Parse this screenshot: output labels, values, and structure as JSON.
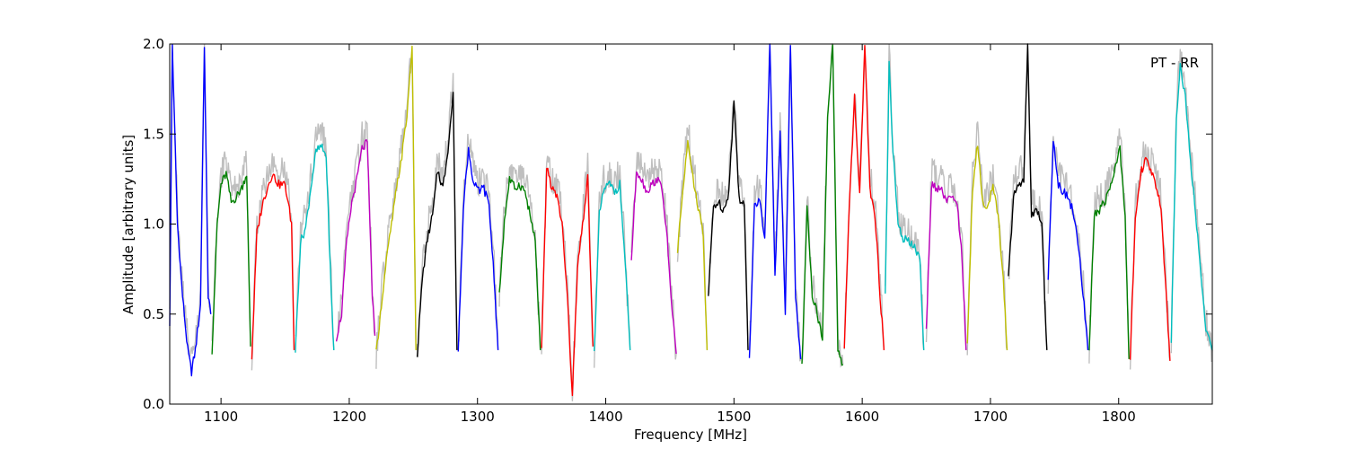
{
  "chart_data": {
    "type": "line",
    "xlabel": "Frequency [MHz]",
    "ylabel": "Amplitude [arbitrary units]",
    "annotation": "PT - RR",
    "xlim": [
      1060,
      1873
    ],
    "ylim": [
      0.0,
      2.0
    ],
    "grid": false,
    "xticks": [
      1100,
      1200,
      1300,
      1400,
      1500,
      1600,
      1700,
      1800
    ],
    "xtick_labels": [
      "1100",
      "1200",
      "1300",
      "1400",
      "1500",
      "1600",
      "1700",
      "1800"
    ],
    "yticks": [
      0.0,
      0.5,
      1.0,
      1.5,
      2.0
    ],
    "ytick_labels": [
      "0.0",
      "0.5",
      "1.0",
      "1.5",
      "2.0"
    ],
    "background_series_color": "#bfbfbf",
    "subband_colors": [
      "#0000ff",
      "#008000",
      "#ff0000",
      "#00bfbf",
      "#bf00bf",
      "#bfbf00",
      "#000000"
    ],
    "subbands": [
      {
        "color": "#0000ff",
        "x": [
          1060,
          1062,
          1066,
          1070,
          1074,
          1077,
          1080,
          1084,
          1087,
          1090,
          1092
        ],
        "y": [
          0.45,
          2.0,
          1.0,
          0.6,
          0.3,
          0.18,
          0.3,
          0.55,
          2.0,
          0.6,
          0.5
        ]
      },
      {
        "color": "#008000",
        "x": [
          1093,
          1097,
          1100,
          1104,
          1108,
          1112,
          1116,
          1120,
          1123
        ],
        "y": [
          0.3,
          1.0,
          1.22,
          1.28,
          1.12,
          1.15,
          1.2,
          1.28,
          0.32
        ]
      },
      {
        "color": "#ff0000",
        "x": [
          1124,
          1128,
          1132,
          1136,
          1140,
          1145,
          1150,
          1155,
          1157
        ],
        "y": [
          0.26,
          0.95,
          1.1,
          1.2,
          1.28,
          1.22,
          1.22,
          1.0,
          0.3
        ]
      },
      {
        "color": "#00bfbf",
        "x": [
          1158,
          1162,
          1166,
          1170,
          1174,
          1178,
          1182,
          1186,
          1188
        ],
        "y": [
          0.3,
          0.9,
          0.98,
          1.2,
          1.4,
          1.43,
          1.38,
          0.6,
          0.3
        ]
      },
      {
        "color": "#bf00bf",
        "x": [
          1190,
          1194,
          1198,
          1202,
          1206,
          1210,
          1214,
          1218,
          1220
        ],
        "y": [
          0.37,
          0.5,
          0.9,
          1.12,
          1.25,
          1.42,
          1.45,
          0.6,
          0.38
        ]
      },
      {
        "color": "#bfbf00",
        "x": [
          1221,
          1225,
          1229,
          1233,
          1237,
          1241,
          1245,
          1249,
          1252
        ],
        "y": [
          0.28,
          0.55,
          0.8,
          1.0,
          1.2,
          1.38,
          1.6,
          2.0,
          0.3
        ]
      },
      {
        "color": "#000000",
        "x": [
          1253,
          1257,
          1261,
          1265,
          1269,
          1273,
          1277,
          1281,
          1284
        ],
        "y": [
          0.28,
          0.7,
          0.92,
          1.05,
          1.3,
          1.2,
          1.42,
          1.72,
          0.3
        ]
      },
      {
        "color": "#0000ff",
        "x": [
          1285,
          1289,
          1293,
          1297,
          1301,
          1305,
          1309,
          1313,
          1316
        ],
        "y": [
          0.3,
          1.1,
          1.42,
          1.22,
          1.18,
          1.2,
          1.1,
          0.7,
          0.3
        ]
      },
      {
        "color": "#008000",
        "x": [
          1317,
          1321,
          1325,
          1329,
          1333,
          1337,
          1341,
          1345,
          1349
        ],
        "y": [
          0.6,
          1.02,
          1.25,
          1.2,
          1.22,
          1.18,
          1.05,
          0.9,
          0.3
        ]
      },
      {
        "color": "#ff0000",
        "x": [
          1350,
          1354,
          1358,
          1362,
          1366,
          1370,
          1374,
          1378,
          1382,
          1386,
          1390
        ],
        "y": [
          0.3,
          1.32,
          1.2,
          1.15,
          1.0,
          0.6,
          0.04,
          0.75,
          1.0,
          1.25,
          0.32
        ]
      },
      {
        "color": "#00bfbf",
        "x": [
          1391,
          1395,
          1399,
          1403,
          1407,
          1411,
          1415,
          1419
        ],
        "y": [
          0.28,
          1.05,
          1.2,
          1.22,
          1.18,
          1.22,
          0.8,
          0.3
        ]
      },
      {
        "color": "#bf00bf",
        "x": [
          1420,
          1424,
          1428,
          1432,
          1436,
          1440,
          1444,
          1448,
          1452,
          1455
        ],
        "y": [
          0.8,
          1.3,
          1.25,
          1.18,
          1.22,
          1.25,
          1.2,
          0.9,
          0.5,
          0.28
        ]
      },
      {
        "color": "#bfbf00",
        "x": [
          1456,
          1460,
          1464,
          1468,
          1472,
          1476,
          1479
        ],
        "y": [
          0.85,
          1.18,
          1.48,
          1.25,
          1.1,
          0.95,
          0.3
        ]
      },
      {
        "color": "#000000",
        "x": [
          1480,
          1484,
          1488,
          1492,
          1496,
          1500,
          1504,
          1508,
          1511
        ],
        "y": [
          0.6,
          1.1,
          1.12,
          1.08,
          1.18,
          1.68,
          1.15,
          1.1,
          0.3
        ]
      },
      {
        "color": "#0000ff",
        "x": [
          1512,
          1516,
          1520,
          1524,
          1528,
          1532,
          1536,
          1540,
          1544,
          1548,
          1552
        ],
        "y": [
          0.25,
          1.1,
          1.15,
          0.9,
          2.0,
          0.7,
          1.5,
          0.5,
          2.0,
          0.6,
          0.25
        ]
      },
      {
        "color": "#008000",
        "x": [
          1553,
          1557,
          1561,
          1565,
          1569,
          1573,
          1577,
          1581,
          1585
        ],
        "y": [
          0.2,
          1.1,
          0.6,
          0.5,
          0.35,
          1.6,
          2.0,
          0.3,
          0.22
        ]
      },
      {
        "color": "#ff0000",
        "x": [
          1586,
          1590,
          1594,
          1598,
          1602,
          1606,
          1610,
          1614,
          1617
        ],
        "y": [
          0.3,
          1.1,
          1.7,
          1.15,
          2.0,
          1.2,
          1.05,
          0.6,
          0.3
        ]
      },
      {
        "color": "#00bfbf",
        "x": [
          1618,
          1621,
          1624,
          1628,
          1632,
          1636,
          1640,
          1645,
          1648
        ],
        "y": [
          0.6,
          1.9,
          1.4,
          1.0,
          0.92,
          0.9,
          0.88,
          0.8,
          0.3
        ]
      },
      {
        "color": "#bf00bf",
        "x": [
          1650,
          1654,
          1658,
          1662,
          1666,
          1670,
          1674,
          1678,
          1681
        ],
        "y": [
          0.4,
          1.22,
          1.2,
          1.18,
          1.12,
          1.15,
          1.1,
          0.8,
          0.3
        ]
      },
      {
        "color": "#bfbf00",
        "x": [
          1682,
          1686,
          1690,
          1694,
          1698,
          1702,
          1706,
          1710,
          1713
        ],
        "y": [
          0.35,
          1.2,
          1.45,
          1.12,
          1.1,
          1.2,
          1.05,
          0.7,
          0.3
        ]
      },
      {
        "color": "#000000",
        "x": [
          1714,
          1718,
          1722,
          1726,
          1729,
          1732,
          1736,
          1740,
          1744
        ],
        "y": [
          0.7,
          1.15,
          1.22,
          1.25,
          2.0,
          1.05,
          1.08,
          1.0,
          0.3
        ]
      },
      {
        "color": "#0000ff",
        "x": [
          1745,
          1749,
          1753,
          1757,
          1761,
          1765,
          1769,
          1773,
          1776
        ],
        "y": [
          0.7,
          1.48,
          1.22,
          1.18,
          1.15,
          1.05,
          0.85,
          0.55,
          0.3
        ]
      },
      {
        "color": "#008000",
        "x": [
          1777,
          1781,
          1785,
          1789,
          1793,
          1797,
          1801,
          1805,
          1808
        ],
        "y": [
          0.3,
          1.05,
          1.08,
          1.12,
          1.2,
          1.3,
          1.42,
          1.05,
          0.25
        ]
      },
      {
        "color": "#ff0000",
        "x": [
          1809,
          1813,
          1817,
          1821,
          1825,
          1829,
          1833,
          1837,
          1840
        ],
        "y": [
          0.25,
          1.05,
          1.28,
          1.35,
          1.3,
          1.22,
          1.1,
          0.6,
          0.24
        ]
      },
      {
        "color": "#00bfbf",
        "x": [
          1841,
          1845,
          1848,
          1852,
          1856,
          1860,
          1864,
          1868,
          1873
        ],
        "y": [
          0.35,
          1.6,
          1.88,
          1.7,
          1.35,
          1.05,
          0.75,
          0.4,
          0.3
        ]
      }
    ]
  }
}
